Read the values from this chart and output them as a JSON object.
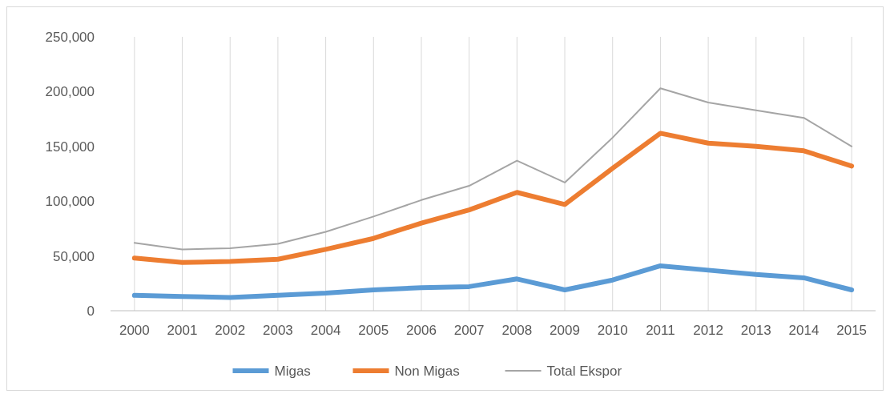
{
  "chart_data": {
    "type": "line",
    "categories": [
      "2000",
      "2001",
      "2002",
      "2003",
      "2004",
      "2005",
      "2006",
      "2007",
      "2008",
      "2009",
      "2010",
      "2011",
      "2012",
      "2013",
      "2014",
      "2015"
    ],
    "series": [
      {
        "name": "Migas",
        "color": "#5b9bd5",
        "values": [
          14000,
          13000,
          12000,
          14000,
          16000,
          19000,
          21000,
          22000,
          29000,
          19000,
          28000,
          41000,
          37000,
          33000,
          30000,
          19000
        ]
      },
      {
        "name": "Non Migas",
        "color": "#ed7d31",
        "values": [
          48000,
          44000,
          45000,
          47000,
          56000,
          66000,
          80000,
          92000,
          108000,
          97000,
          130000,
          162000,
          153000,
          150000,
          146000,
          132000
        ]
      },
      {
        "name": "Total Ekspor",
        "color": "#a5a5a5",
        "values": [
          62000,
          56000,
          57000,
          61000,
          72000,
          86000,
          101000,
          114000,
          137000,
          117000,
          158000,
          203000,
          190000,
          183000,
          176000,
          150000
        ]
      }
    ],
    "ylim": [
      0,
      250000
    ],
    "yticks": [
      {
        "value": 0,
        "label": "0"
      },
      {
        "value": 50000,
        "label": "50,000"
      },
      {
        "value": 100000,
        "label": "100,000"
      },
      {
        "value": 150000,
        "label": "150,000"
      },
      {
        "value": 200000,
        "label": "200,000"
      },
      {
        "value": 250000,
        "label": "250,000"
      }
    ],
    "grid": "x",
    "legend": "bottom",
    "marker": "none",
    "line_style": "solid"
  }
}
